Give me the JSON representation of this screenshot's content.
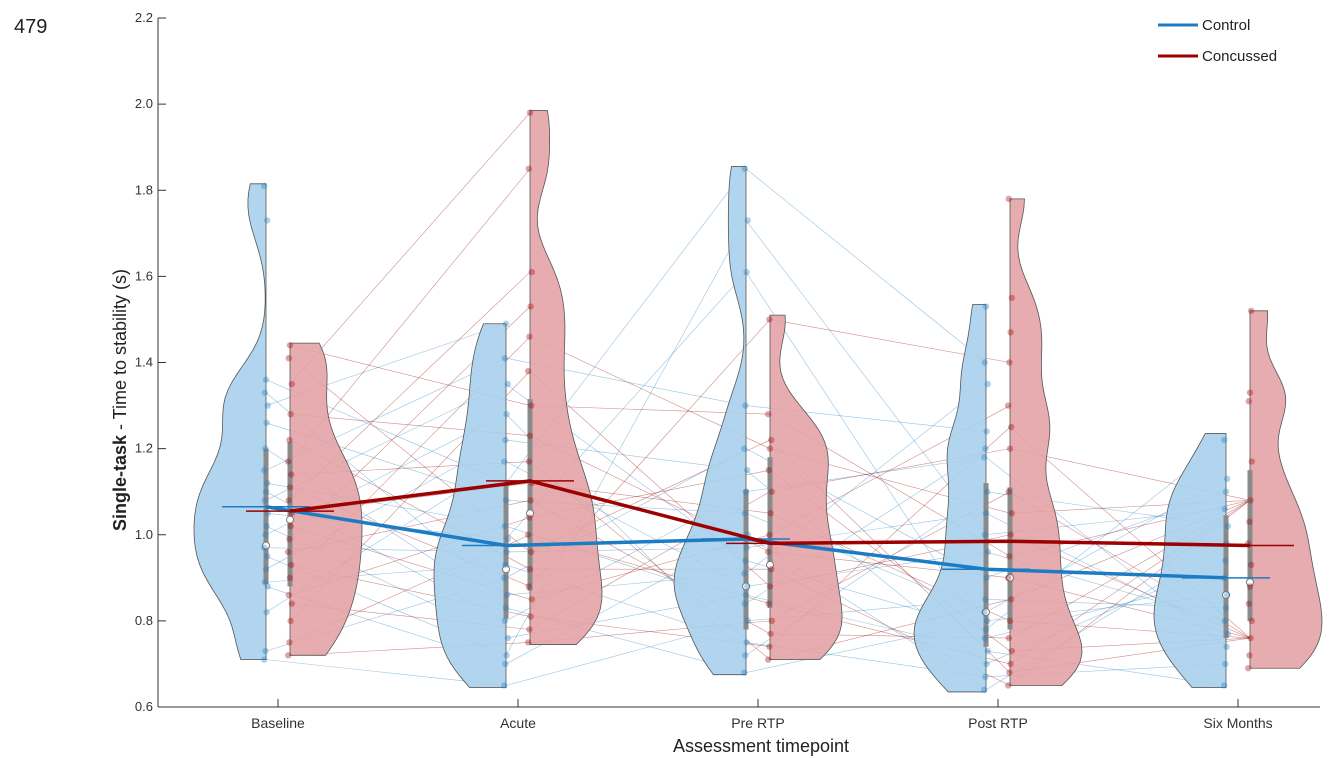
{
  "page_number": "479",
  "colors": {
    "control": "#1b7cc4",
    "concussed": "#9c0000",
    "control_fill": "#a9d0ec",
    "concussed_fill": "#e3a3a6",
    "box": "#8a8a8a",
    "axis": "#333333"
  },
  "chart_data": {
    "type": "violin",
    "title": "",
    "xlabel": "Assessment timepoint",
    "ylabel_bold": "Single-task",
    "ylabel_rest": " - Time to stability (s)",
    "ylim": [
      0.6,
      2.2
    ],
    "yticks": [
      0.6,
      0.8,
      1.0,
      1.2,
      1.4,
      1.6,
      1.8,
      2.0,
      2.2
    ],
    "ytick_labels": [
      "0.6",
      "0.8",
      "1.0",
      "1.2",
      "1.4",
      "1.6",
      "1.8",
      "2.0",
      "2.2"
    ],
    "categories": [
      "Baseline",
      "Acute",
      "Pre RTP",
      "Post RTP",
      "Six Months"
    ],
    "legend": {
      "position": "top-right",
      "entries": [
        "Control",
        "Concussed"
      ]
    },
    "series": [
      {
        "name": "Control",
        "mean_line": [
          1.065,
          0.975,
          0.99,
          0.92,
          0.9
        ],
        "median": [
          0.975,
          0.92,
          0.88,
          0.82,
          0.86
        ],
        "q1": [
          0.885,
          0.805,
          0.78,
          0.74,
          0.76
        ],
        "q3": [
          1.2,
          1.12,
          1.105,
          1.12,
          1.045
        ],
        "range": [
          [
            0.71,
            1.815
          ],
          [
            0.645,
            1.49
          ],
          [
            0.675,
            1.855
          ],
          [
            0.635,
            1.535
          ],
          [
            0.645,
            1.235
          ]
        ],
        "points": [
          [
            0.71,
            0.73,
            0.82,
            0.88,
            0.89,
            0.92,
            0.95,
            0.97,
            1.0,
            1.02,
            1.05,
            1.08,
            1.1,
            1.12,
            1.15,
            1.2,
            1.26,
            1.3,
            1.33,
            1.36,
            1.73,
            1.81
          ],
          [
            0.65,
            0.7,
            0.72,
            0.76,
            0.8,
            0.83,
            0.86,
            0.9,
            0.93,
            0.96,
            0.99,
            1.02,
            1.08,
            1.12,
            1.17,
            1.22,
            1.28,
            1.35,
            1.41,
            1.49
          ],
          [
            0.68,
            0.72,
            0.75,
            0.8,
            0.84,
            0.86,
            0.88,
            0.91,
            0.94,
            0.97,
            1.0,
            1.05,
            1.1,
            1.15,
            1.2,
            1.3,
            1.61,
            1.73,
            1.85
          ],
          [
            0.64,
            0.67,
            0.7,
            0.73,
            0.76,
            0.78,
            0.8,
            0.82,
            0.85,
            0.9,
            0.96,
            1.0,
            1.05,
            1.1,
            1.18,
            1.2,
            1.24,
            1.35,
            1.4,
            1.53
          ],
          [
            0.65,
            0.7,
            0.74,
            0.77,
            0.8,
            0.83,
            0.86,
            0.9,
            0.94,
            0.98,
            1.02,
            1.06,
            1.1,
            1.13,
            1.22
          ]
        ]
      },
      {
        "name": "Concussed",
        "mean_line": [
          1.055,
          1.125,
          0.98,
          0.985,
          0.975
        ],
        "median": [
          1.035,
          1.05,
          0.93,
          0.9,
          0.89
        ],
        "q1": [
          0.88,
          0.87,
          0.83,
          0.78,
          0.8
        ],
        "q3": [
          1.215,
          1.315,
          1.18,
          1.11,
          1.15
        ],
        "range": [
          [
            0.72,
            1.445
          ],
          [
            0.745,
            1.985
          ],
          [
            0.71,
            1.51
          ],
          [
            0.65,
            1.78
          ],
          [
            0.69,
            1.52
          ]
        ],
        "points": [
          [
            0.72,
            0.75,
            0.8,
            0.84,
            0.86,
            0.9,
            0.93,
            0.96,
            0.99,
            1.02,
            1.05,
            1.08,
            1.11,
            1.14,
            1.17,
            1.22,
            1.28,
            1.35,
            1.41,
            1.44
          ],
          [
            0.75,
            0.78,
            0.81,
            0.85,
            0.88,
            0.92,
            0.96,
            1.0,
            1.04,
            1.08,
            1.12,
            1.17,
            1.23,
            1.3,
            1.38,
            1.46,
            1.53,
            1.61,
            1.85,
            1.98
          ],
          [
            0.71,
            0.74,
            0.77,
            0.8,
            0.84,
            0.88,
            0.92,
            0.96,
            1.0,
            1.05,
            1.1,
            1.15,
            1.2,
            1.22,
            1.28,
            1.5
          ],
          [
            0.65,
            0.68,
            0.7,
            0.73,
            0.76,
            0.8,
            0.85,
            0.9,
            0.95,
            1.0,
            1.05,
            1.1,
            1.2,
            1.25,
            1.3,
            1.4,
            1.47,
            1.55,
            1.78
          ],
          [
            0.69,
            0.72,
            0.76,
            0.8,
            0.84,
            0.88,
            0.93,
            0.98,
            1.03,
            1.08,
            1.17,
            1.31,
            1.33,
            1.52
          ]
        ]
      }
    ]
  }
}
